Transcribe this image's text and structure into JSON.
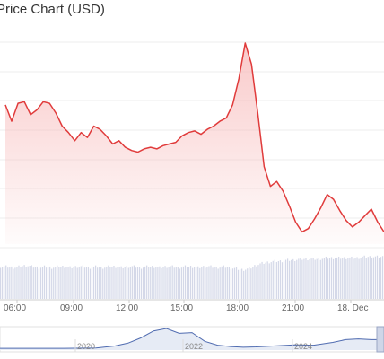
{
  "header": {
    "title": "Price Chart (USD)"
  },
  "colors": {
    "line": "#e03b3b",
    "fill_top": "#f7b8b8",
    "volume": "#d4d8e8",
    "grid": "#eeeeee",
    "navigator": "#4f6bb0"
  },
  "chart_data": {
    "type": "area",
    "title": "Price Chart (USD)",
    "x_tick_labels": [
      "06:00",
      "09:00",
      "12:00",
      "15:00",
      "18:00",
      "21:00",
      "18. Dec"
    ],
    "x_hours": [
      0,
      0.5,
      1,
      1.5,
      2,
      2.5,
      3,
      3.5,
      4,
      4.5,
      5,
      5.5,
      6,
      6.5,
      7,
      7.5,
      8,
      8.5,
      9,
      9.5,
      10,
      10.5,
      11,
      11.5,
      12,
      12.5,
      13,
      13.5,
      14,
      14.5,
      15,
      15.5,
      16,
      16.5,
      17,
      17.5,
      18,
      18.5,
      19,
      19.5,
      20,
      20.5,
      21,
      21.5,
      22,
      22.5,
      23,
      23.5,
      24,
      24.5,
      25,
      25.5,
      26,
      26.5,
      27,
      27.5,
      28,
      28.5,
      29,
      29.5,
      30
    ],
    "x_hours_start": "06:00",
    "price_index": [
      80,
      70,
      81,
      82,
      74,
      77,
      82,
      81,
      75,
      67,
      63,
      58,
      63,
      60,
      67,
      65,
      61,
      56,
      58,
      54,
      52,
      51,
      53,
      54,
      53,
      55,
      56,
      57,
      61,
      63,
      64,
      62,
      65,
      67,
      70,
      72,
      80,
      96,
      118,
      105,
      75,
      42,
      30,
      33,
      27,
      18,
      8,
      2,
      4,
      10,
      17,
      25,
      22,
      15,
      9,
      5,
      8,
      12,
      16,
      8,
      2
    ],
    "volume_index": [
      30,
      30,
      29,
      30,
      31,
      30,
      29,
      30,
      29,
      30,
      30,
      29,
      30,
      30,
      29,
      30,
      29,
      30,
      30,
      29,
      30,
      30,
      29,
      30,
      30,
      29,
      30,
      30,
      29,
      30,
      30,
      29,
      30,
      30,
      29,
      30,
      29,
      28,
      27,
      28,
      31,
      33,
      34,
      35,
      35,
      36,
      36,
      37,
      37,
      37,
      37,
      38,
      38,
      38,
      38,
      38,
      38,
      39,
      39,
      39,
      39
    ],
    "navigator": {
      "tick_labels": [
        "2020",
        "2022",
        "2024"
      ],
      "years": [
        2019.0,
        2019.5,
        2020.0,
        2020.5,
        2020.8,
        2021.0,
        2021.2,
        2021.4,
        2021.6,
        2021.8,
        2022.0,
        2022.2,
        2022.4,
        2022.6,
        2022.8,
        2023.0,
        2023.3,
        2023.6,
        2023.9,
        2024.2,
        2024.4,
        2024.6,
        2024.8,
        2025.0
      ],
      "values": [
        5,
        5,
        5,
        6,
        12,
        20,
        35,
        55,
        62,
        48,
        50,
        25,
        14,
        10,
        8,
        9,
        12,
        15,
        14,
        22,
        30,
        32,
        30,
        30
      ]
    },
    "grid": true,
    "legend": "none"
  }
}
